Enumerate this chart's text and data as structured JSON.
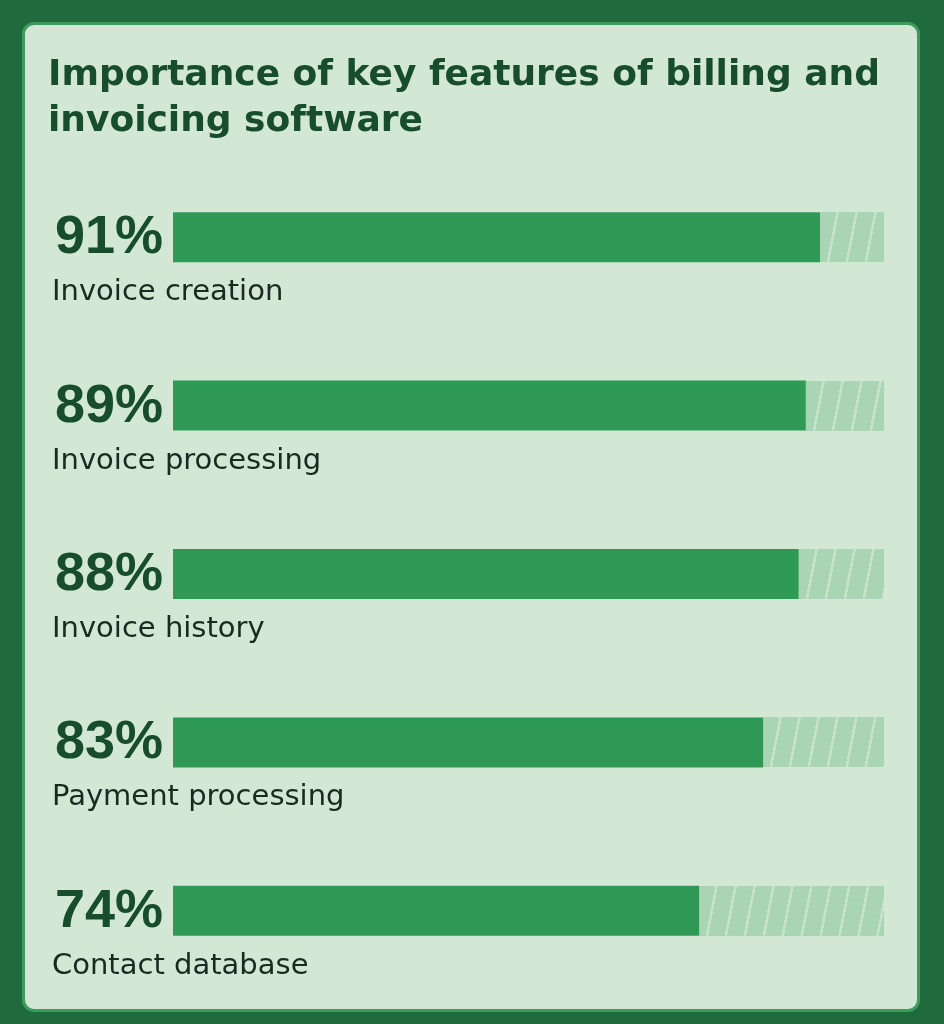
{
  "chart_data": {
    "type": "bar",
    "title": "Importance of key features of billing and invoicing software",
    "orientation": "horizontal",
    "categories": [
      "Invoice creation",
      "Invoice processing",
      "Invoice history",
      "Payment processing",
      "Contact database"
    ],
    "values": [
      91,
      89,
      88,
      83,
      74
    ],
    "value_labels": [
      "91%",
      "89%",
      "88%",
      "83%",
      "74%"
    ],
    "color": "#2f9a55",
    "xlim": [
      0,
      100
    ]
  }
}
